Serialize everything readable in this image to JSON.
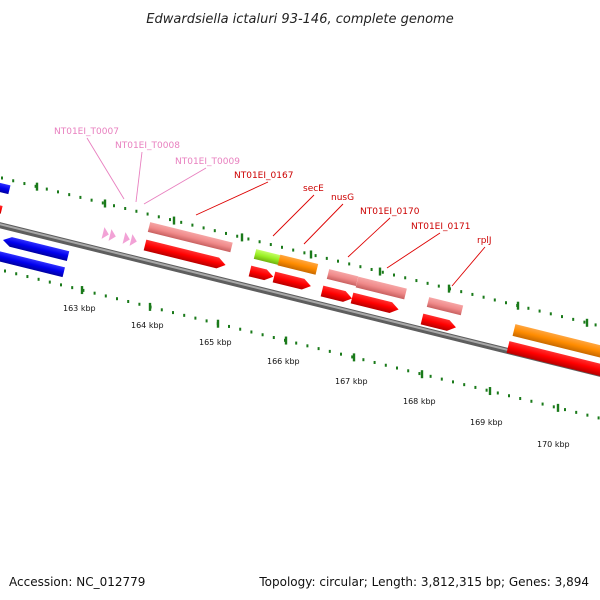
{
  "title": "Edwardsiella ictaluri 93-146, complete genome",
  "footer": {
    "accession": "Accession: NC_012779",
    "summary": "Topology: circular; Length: 3,812,315 bp; Genes: 3,894"
  },
  "scale_labels": [
    "163 kbp",
    "164 kbp",
    "165 kbp",
    "166 kbp",
    "167 kbp",
    "168 kbp",
    "169 kbp",
    "170 kbp"
  ],
  "gene_labels": [
    {
      "text": "NT01EI_T0007",
      "group": "trna"
    },
    {
      "text": "NT01EI_T0008",
      "group": "trna"
    },
    {
      "text": "NT01EI_T0009",
      "group": "trna"
    },
    {
      "text": "NT01EI_0167",
      "group": "cds"
    },
    {
      "text": "secE",
      "group": "cds"
    },
    {
      "text": "nusG",
      "group": "cds"
    },
    {
      "text": "NT01EI_0170",
      "group": "cds"
    },
    {
      "text": "NT01EI_0171",
      "group": "cds"
    },
    {
      "text": "rplJ",
      "group": "cds"
    }
  ],
  "colors": {
    "backbone": "#8a8a8a",
    "ticks": "#1a7a1a",
    "cds": "#ff0000",
    "cds_light": "#f08a8a",
    "blue_feature": "#0000ee",
    "orange_feature": "#ff8c00",
    "green_feature": "#99ee22",
    "trna": "#f2a2d6",
    "trna_label": "#e87fbf",
    "cds_label": "#cc0000"
  }
}
